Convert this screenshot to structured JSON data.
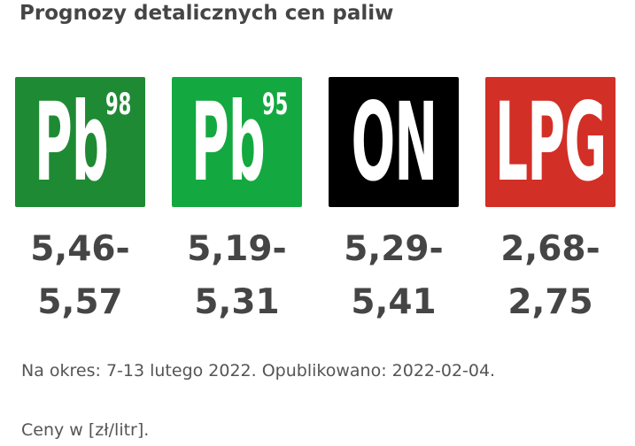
{
  "header": {
    "title": "Prognozy detalicznych cen paliw"
  },
  "fuels": [
    {
      "logo": "Pb",
      "sup": "98",
      "price_min": "5,46-",
      "price_max": "5,57"
    },
    {
      "logo": "Pb",
      "sup": "95",
      "price_min": "5,19-",
      "price_max": "5,31"
    },
    {
      "logo": "ON",
      "price_min": "5,29-",
      "price_max": "5,41"
    },
    {
      "logo": "LPG",
      "price_min": "2,68-",
      "price_max": "2,75"
    }
  ],
  "footer": {
    "period": "Na okres: 7-13 lutego 2022. Opublikowano: 2022-02-04.",
    "unit": "Ceny w [zł/litr]."
  }
}
